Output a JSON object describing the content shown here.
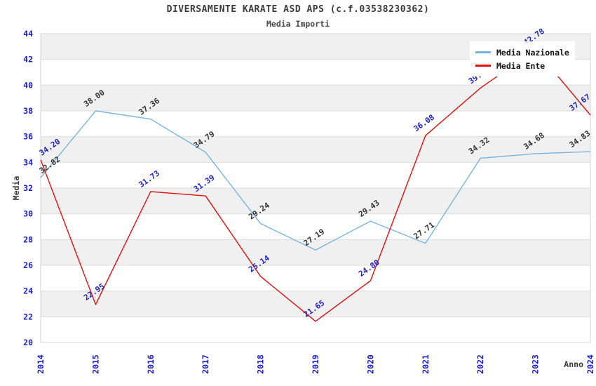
{
  "title": "DIVERSAMENTE KARATE ASD APS (c.f.03538230362)",
  "subtitle": "Media Importi",
  "chart_data": {
    "type": "line",
    "x": [
      2014,
      2015,
      2016,
      2017,
      2018,
      2019,
      2020,
      2021,
      2022,
      2023,
      2024
    ],
    "series": [
      {
        "name": "Media Nazionale",
        "color": "#78b4e1",
        "label_color": "#333333",
        "values": [
          32.82,
          38.0,
          37.36,
          34.79,
          29.24,
          27.19,
          29.43,
          27.71,
          34.32,
          34.68,
          34.83
        ]
      },
      {
        "name": "Media Ente",
        "color": "#e01010",
        "label_color": "#2424c0",
        "values": [
          34.2,
          22.95,
          31.73,
          31.39,
          25.14,
          21.65,
          24.8,
          36.08,
          39.78,
          42.78,
          37.67
        ]
      }
    ],
    "xlabel": "Anno",
    "ylabel": "Media",
    "ylim": [
      20,
      44
    ],
    "ytick_step": 2,
    "xtick_rotation": -90,
    "label_rotation": -35,
    "legend_position": "top-right",
    "grid": "horizontal-bands",
    "band_colors": [
      "#f0f0f0",
      "#ffffff"
    ],
    "tick_color": "#1a1ad6",
    "axis_title_color": "#3a3a3a",
    "plot_border_color": "#d4d4d4"
  }
}
